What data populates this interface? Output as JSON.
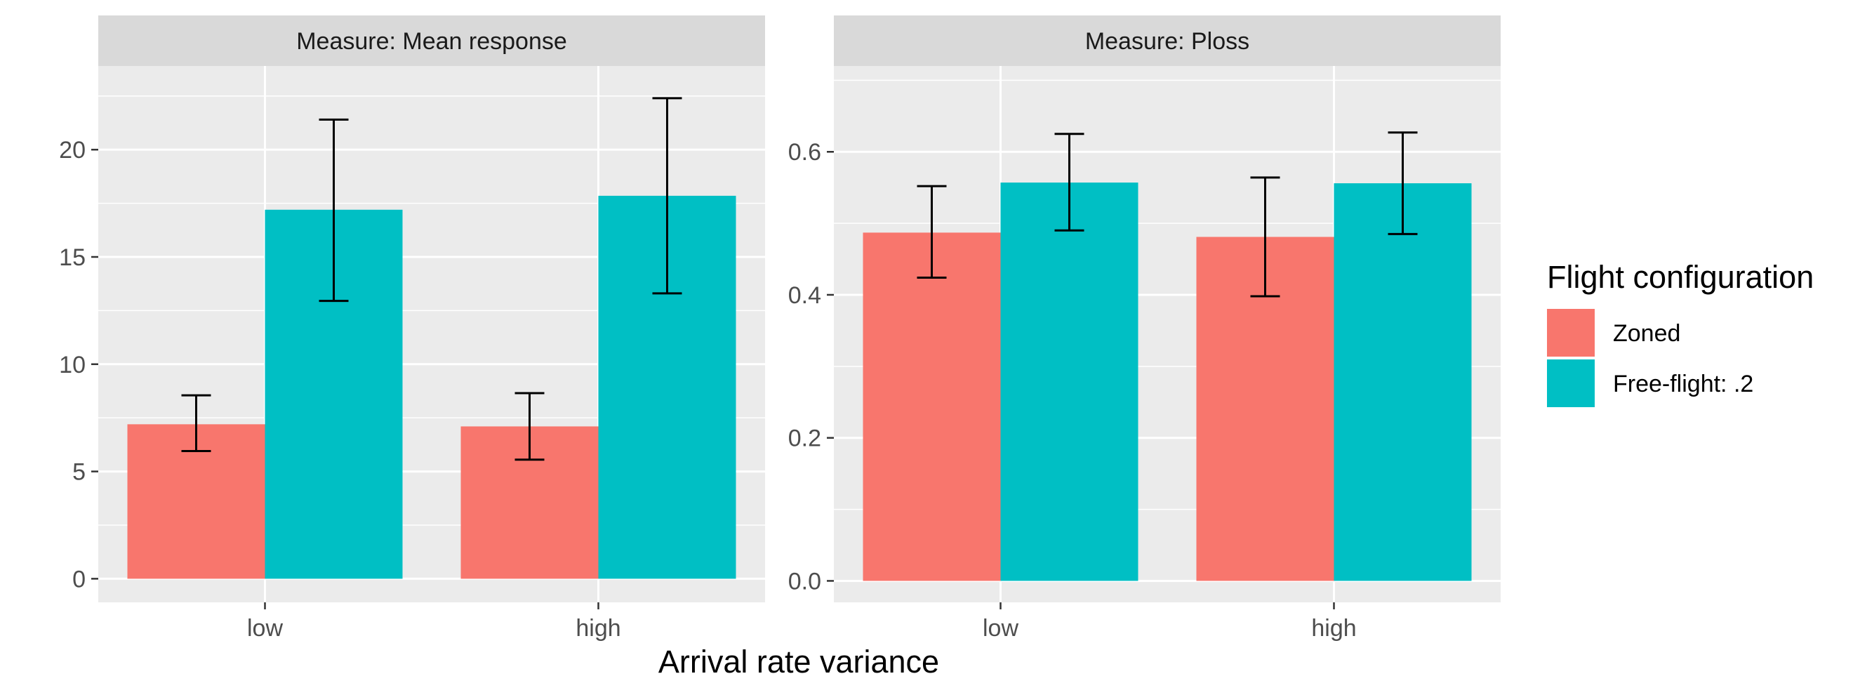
{
  "chart_data": {
    "type": "bar",
    "xlabel": "Arrival rate variance",
    "categories": [
      "low",
      "high"
    ],
    "legend": {
      "title": "Flight configuration",
      "placement": "right",
      "entries": [
        {
          "name": "Zoned",
          "color": "#F8766D"
        },
        {
          "name": "Free-flight: .2",
          "color": "#00BFC4"
        }
      ]
    },
    "colors": {
      "panel": "#EBEBEB",
      "strip": "#D9D9D9",
      "grid": "#FFFFFF",
      "errorbar": "#000000"
    },
    "grid": true,
    "panels": [
      {
        "strip_label": "Measure: Mean response",
        "ylim": [
          -1.1,
          23.9
        ],
        "yticks": [
          0,
          5,
          10,
          15,
          20
        ],
        "ytick_labels": [
          "0",
          "5",
          "10",
          "15",
          "20"
        ],
        "series": [
          {
            "name": "Zoned",
            "values": [
              7.2,
              7.1
            ],
            "err_low": [
              5.95,
              5.55
            ],
            "err_high": [
              8.55,
              8.65
            ]
          },
          {
            "name": "Free-flight: .2",
            "values": [
              17.2,
              17.85
            ],
            "err_low": [
              12.95,
              13.3
            ],
            "err_high": [
              21.4,
              22.4
            ]
          }
        ]
      },
      {
        "strip_label": "Measure: Ploss",
        "ylim": [
          -0.03,
          0.72
        ],
        "yticks": [
          0,
          0.2,
          0.4,
          0.6
        ],
        "ytick_labels": [
          "0.0",
          "0.2",
          "0.4",
          "0.6"
        ],
        "series": [
          {
            "name": "Zoned",
            "values": [
              0.487,
              0.481
            ],
            "err_low": [
              0.424,
              0.398
            ],
            "err_high": [
              0.552,
              0.564
            ]
          },
          {
            "name": "Free-flight: .2",
            "values": [
              0.557,
              0.556
            ],
            "err_low": [
              0.49,
              0.485
            ],
            "err_high": [
              0.625,
              0.627
            ]
          }
        ]
      }
    ]
  }
}
